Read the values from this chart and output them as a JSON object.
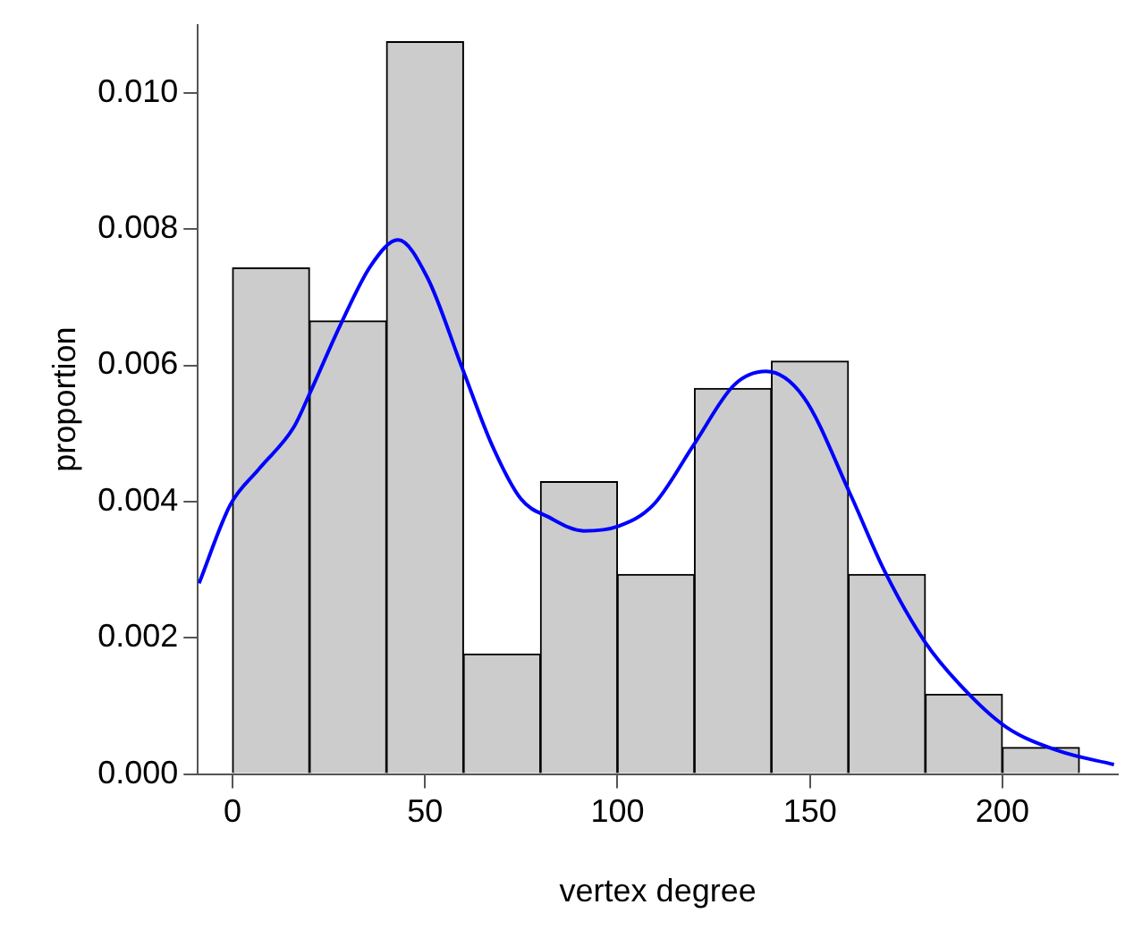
{
  "chart_data": {
    "type": "histogram",
    "xlabel": "vertex degree",
    "ylabel": "proportion",
    "bins": [
      0,
      20,
      40,
      60,
      80,
      100,
      120,
      140,
      160,
      180,
      200,
      220
    ],
    "values": [
      0.00743,
      0.00665,
      0.01075,
      0.00176,
      0.00429,
      0.00293,
      0.00566,
      0.00606,
      0.00293,
      0.00117,
      0.00039
    ],
    "color": "#cccccc",
    "series": [
      {
        "type": "line",
        "color": "#0000ff",
        "x": [
          -8.7,
          -0.6,
          6.9,
          15.9,
          20.0,
          28.0,
          36.0,
          43.0,
          50.6,
          59.6,
          67.4,
          74.9,
          82.2,
          91.2,
          100.3,
          109.3,
          119.8,
          130.3,
          138.6,
          148.4,
          160.4,
          169.4,
          180.0,
          190.5,
          201.0,
          214.6,
          229.0
        ],
        "values": [
          0.0028,
          0.00395,
          0.00448,
          0.00509,
          0.00558,
          0.00659,
          0.00747,
          0.00784,
          0.00729,
          0.00597,
          0.00483,
          0.00404,
          0.00377,
          0.00357,
          0.00364,
          0.00395,
          0.00483,
          0.00571,
          0.00591,
          0.00553,
          0.00412,
          0.00298,
          0.00193,
          0.00122,
          0.00069,
          0.00034,
          0.00014
        ]
      }
    ],
    "xlim": [
      -9,
      230
    ],
    "xticks": [
      0,
      50,
      100,
      150,
      200
    ],
    "ylim": [
      0,
      0.011
    ],
    "yticks": [
      {
        "value": 0,
        "label": "0.000"
      },
      0.002,
      0.004,
      0.006,
      0.008,
      {
        "value": 0.01,
        "label": "0.010"
      }
    ],
    "grid": false,
    "legend": false,
    "marker": "none",
    "line_style": "solid"
  }
}
